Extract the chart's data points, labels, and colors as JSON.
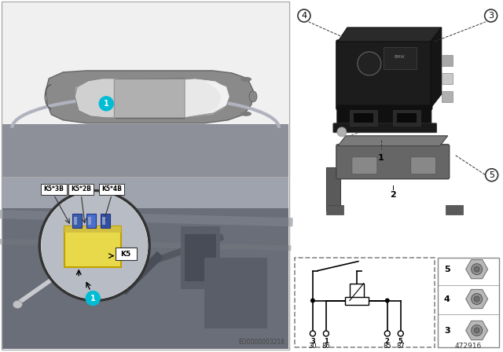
{
  "bg_color": "#ffffff",
  "left_panel_bg_top": "#f2f2f2",
  "left_panel_bg_bot": "#b0b5be",
  "car_body": "#888888",
  "car_roof": "#c5c5c5",
  "car_window": "#e0e0e0",
  "yellow": "#e8d94a",
  "blue_conn": "#4466bb",
  "cyan": "#00bcd4",
  "relay_dark": "#1e1e1e",
  "relay_mid": "#2d2d2d",
  "bracket_dark": "#5a5a5a",
  "bracket_mid": "#7a7a7a",
  "nut_color": "#a0a0a0",
  "part_number_text": "472916",
  "eo_number": "EO0000003216",
  "relay_labels": [
    "K5*3B",
    "K5*2B",
    "K5*4B"
  ],
  "k5_label": "K5",
  "pin_numbers_top": [
    "3",
    "1",
    "2",
    "5"
  ],
  "pin_numbers_bottom": [
    "30",
    "86",
    "85",
    "87"
  ],
  "left_panel_border": "#aaaaaa",
  "right_callout_border": "#333333",
  "circuit_border": "#888888"
}
